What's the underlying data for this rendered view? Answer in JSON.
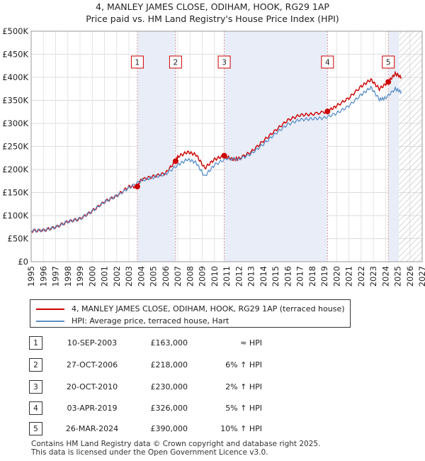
{
  "title_line1": "4, MANLEY JAMES CLOSE, ODIHAM, HOOK, RG29 1AP",
  "title_line2": "Price paid vs. HM Land Registry's House Price Index (HPI)",
  "chart_data": {
    "type": "line",
    "y_ticks": [
      "£0",
      "£50K",
      "£100K",
      "£150K",
      "£200K",
      "£250K",
      "£300K",
      "£350K",
      "£400K",
      "£450K",
      "£500K"
    ],
    "x_ticks": [
      "1995",
      "1996",
      "1997",
      "1998",
      "1999",
      "2000",
      "2001",
      "2002",
      "2003",
      "2004",
      "2005",
      "2006",
      "2007",
      "2008",
      "2009",
      "2010",
      "2011",
      "2012",
      "2013",
      "2014",
      "2015",
      "2016",
      "2017",
      "2018",
      "2019",
      "2020",
      "2021",
      "2022",
      "2023",
      "2024",
      "2025",
      "2026",
      "2027"
    ],
    "xlim": [
      1995,
      2027
    ],
    "ylim": [
      0,
      500000
    ],
    "forecast_start": 2025.1,
    "series": [
      {
        "name": "4, MANLEY JAMES CLOSE, ODIHAM, HOOK, RG29 1AP (terraced house)",
        "color": "#cc0000",
        "x": [
          1995,
          1996,
          1997,
          1998,
          1999,
          2000,
          2001,
          2002,
          2003,
          2003.7,
          2004,
          2005,
          2006,
          2006.8,
          2007,
          2007.8,
          2008.5,
          2009.2,
          2010,
          2010.8,
          2011.5,
          2012,
          2013,
          2014,
          2015,
          2016,
          2017,
          2018,
          2019.25,
          2020,
          2021,
          2022,
          2022.8,
          2023.5,
          2024.23,
          2024.8,
          2025.3
        ],
        "y": [
          67000,
          68000,
          75000,
          87000,
          93000,
          110000,
          130000,
          143000,
          163000,
          163000,
          178000,
          185000,
          192000,
          218000,
          228000,
          238000,
          232000,
          203000,
          222000,
          230000,
          222000,
          224000,
          238000,
          262000,
          285000,
          307000,
          318000,
          320000,
          326000,
          338000,
          355000,
          380000,
          395000,
          375000,
          390000,
          408000,
          400000
        ]
      },
      {
        "name": "HPI: Average price, terraced house, Hart",
        "color": "#5b8fc7",
        "x": [
          1995,
          1996,
          1997,
          1998,
          1999,
          2000,
          2001,
          2002,
          2003,
          2004,
          2005,
          2006,
          2007,
          2007.8,
          2008.5,
          2009.2,
          2010,
          2011,
          2012,
          2013,
          2014,
          2015,
          2016,
          2017,
          2018,
          2019,
          2020,
          2021,
          2022,
          2022.8,
          2023.5,
          2024,
          2024.8,
          2025.3
        ],
        "y": [
          67000,
          68000,
          75000,
          87000,
          93000,
          110000,
          130000,
          143000,
          160000,
          176000,
          183000,
          190000,
          210000,
          222000,
          215000,
          185000,
          210000,
          224000,
          222000,
          234000,
          255000,
          278000,
          298000,
          308000,
          310000,
          312000,
          322000,
          338000,
          362000,
          378000,
          352000,
          355000,
          375000,
          368000
        ]
      }
    ],
    "sales": [
      {
        "label": "1",
        "x": 2003.69,
        "y": 163000
      },
      {
        "label": "2",
        "x": 2006.82,
        "y": 218000
      },
      {
        "label": "3",
        "x": 2010.8,
        "y": 230000
      },
      {
        "label": "4",
        "x": 2019.25,
        "y": 326000
      },
      {
        "label": "5",
        "x": 2024.23,
        "y": 390000
      }
    ]
  },
  "legend": {
    "red_label": "4, MANLEY JAMES CLOSE, ODIHAM, HOOK, RG29 1AP (terraced house)",
    "blue_label": "HPI: Average price, terraced house, Hart",
    "red_color": "#cc0000",
    "blue_color": "#5b8fc7"
  },
  "transactions": [
    {
      "num": "1",
      "date": "10-SEP-2003",
      "price": "£163,000",
      "hpi": "≈ HPI"
    },
    {
      "num": "2",
      "date": "27-OCT-2006",
      "price": "£218,000",
      "hpi": "6% ↑ HPI"
    },
    {
      "num": "3",
      "date": "20-OCT-2010",
      "price": "£230,000",
      "hpi": "2% ↑ HPI"
    },
    {
      "num": "4",
      "date": "03-APR-2019",
      "price": "£326,000",
      "hpi": "5% ↑ HPI"
    },
    {
      "num": "5",
      "date": "26-MAR-2024",
      "price": "£390,000",
      "hpi": "10% ↑ HPI"
    }
  ],
  "footer_line1": "Contains HM Land Registry data © Crown copyright and database right 2025.",
  "footer_line2": "This data is licensed under the Open Government Licence v3.0."
}
